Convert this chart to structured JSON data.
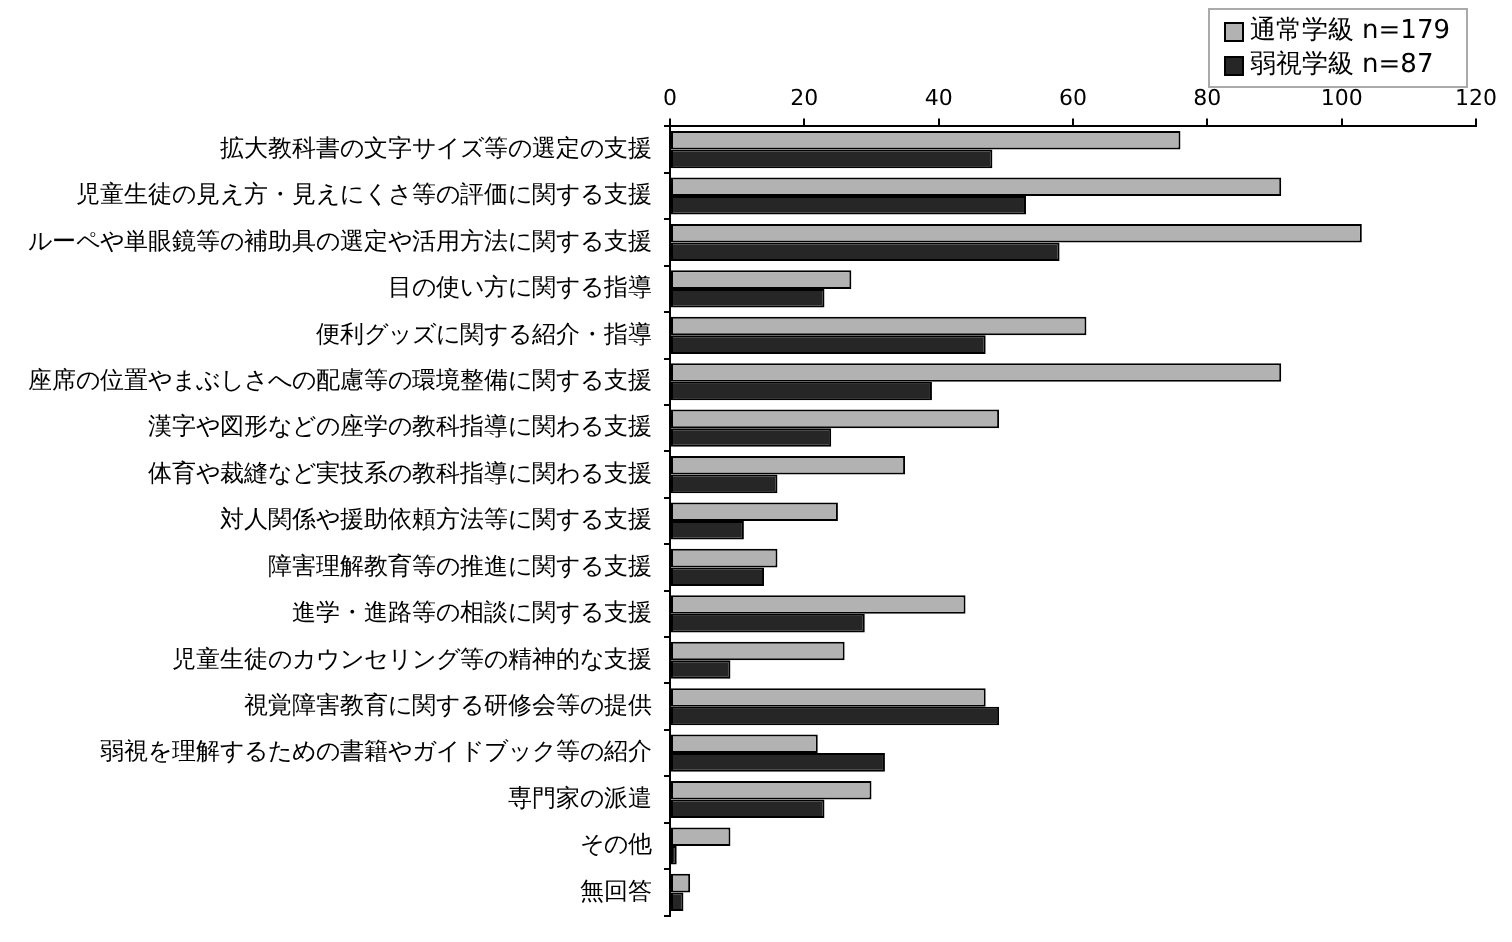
{
  "chart_data": {
    "type": "bar",
    "orientation": "horizontal",
    "categories": [
      "拡大教科書の文字サイズ等の選定の支援",
      "児童生徒の見え方・見えにくさ等の評価に関する支援",
      "ルーペや単眼鏡等の補助具の選定や活用方法に関する支援",
      "目の使い方に関する指導",
      "便利グッズに関する紹介・指導",
      "座席の位置やまぶしさへの配慮等の環境整備に関する支援",
      "漢字や図形などの座学の教科指導に関わる支援",
      "体育や裁縫など実技系の教科指導に関わる支援",
      "対人関係や援助依頼方法等に関する支援",
      "障害理解教育等の推進に関する支援",
      "進学・進路等の相談に関する支援",
      "児童生徒のカウンセリング等の精神的な支援",
      "視覚障害教育に関する研修会等の提供",
      "弱視を理解するための書籍やガイドブック等の紹介",
      "専門家の派遣",
      "その他",
      "無回答"
    ],
    "series": [
      {
        "name": "通常学級 n=179",
        "color": "#b2b2b2",
        "values": [
          76,
          91,
          103,
          27,
          62,
          91,
          49,
          35,
          25,
          16,
          44,
          26,
          47,
          22,
          30,
          9,
          3
        ]
      },
      {
        "name": "弱視学級 n=87",
        "color": "#262626",
        "values": [
          48,
          53,
          58,
          23,
          47,
          39,
          24,
          16,
          11,
          14,
          29,
          9,
          49,
          32,
          23,
          1,
          2
        ]
      }
    ],
    "xlim": [
      0,
      120
    ],
    "xticks": [
      0,
      20,
      40,
      60,
      80,
      100,
      120
    ],
    "legend": "top right"
  }
}
